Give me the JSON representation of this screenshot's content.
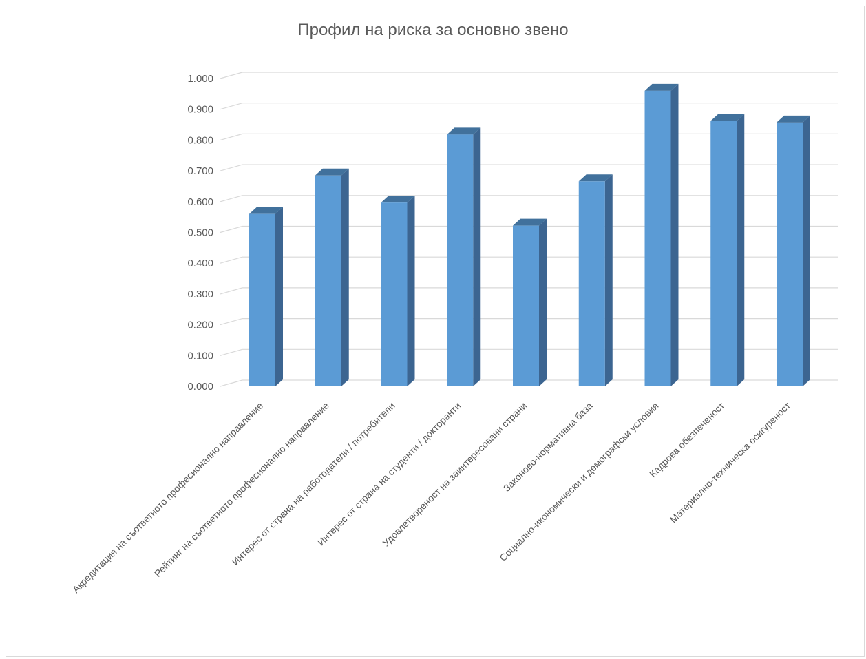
{
  "chart_data": {
    "type": "bar",
    "title": "Профил на риска за основно звено",
    "categories": [
      "Акредитация на съответното професионално направление",
      "Рейтинг на съответното професионално направление",
      "Интерес от страна на работодатели / потребители",
      "Интерес от страна на студенти / докторанти",
      "Удовлетвореност на заинтересовани страни",
      "Законово-нормативна база",
      "Социално-икономически и демографски условия",
      "Кадрова обезпеченост",
      "Материално-техническа осигуреност"
    ],
    "values": [
      0.56,
      0.685,
      0.597,
      0.818,
      0.522,
      0.666,
      0.96,
      0.862,
      0.857
    ],
    "yticks": [
      "0.000",
      "0.100",
      "0.200",
      "0.300",
      "0.400",
      "0.500",
      "0.600",
      "0.700",
      "0.800",
      "0.900",
      "1.000"
    ],
    "ylim": [
      0,
      1
    ],
    "xlabel": "",
    "ylabel": "",
    "grid": true,
    "legend": "none",
    "colors": {
      "bar_front": "#5b9bd5",
      "bar_side": "#3c6591",
      "bar_top": "#41719c",
      "grid": "#d9d9d9",
      "text": "#595959"
    }
  }
}
